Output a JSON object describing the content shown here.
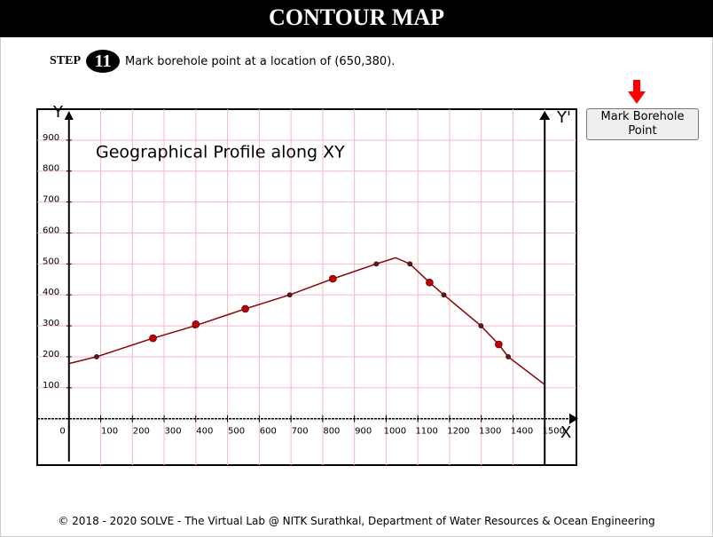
{
  "header": {
    "title": "CONTOUR MAP"
  },
  "step": {
    "label": "STEP",
    "number": "11",
    "instruction": "Mark borehole point at a location of (650,380)."
  },
  "button": {
    "label": "Mark Borehole Point"
  },
  "chart_data": {
    "type": "line",
    "title": "Geographical Profile along XY",
    "x_axis_label": "X",
    "y_axis_label": "Y",
    "y2_axis_label": "Y'",
    "xlim": [
      -100,
      1600
    ],
    "ylim": [
      -150,
      1000
    ],
    "xticks": [
      0,
      100,
      200,
      300,
      400,
      500,
      600,
      700,
      800,
      900,
      1000,
      1100,
      1200,
      1300,
      1400,
      1500
    ],
    "yticks": [
      100,
      200,
      300,
      400,
      500,
      600,
      700,
      800,
      900
    ],
    "grid": true,
    "grid_color": "#f4b8c8",
    "series": [
      {
        "color": "#8b0000",
        "x": [
          0,
          87,
          265,
          397,
          556,
          696,
          832,
          969,
          1030,
          1075,
          1137,
          1182,
          1299,
          1355,
          1385,
          1500
        ],
        "values": [
          178,
          200,
          260,
          300,
          355,
          400,
          452,
          500,
          520,
          500,
          440,
          400,
          300,
          240,
          200,
          110
        ]
      },
      {
        "type": "scatter",
        "color": "#5a1a1a",
        "x": [
          87,
          397,
          696,
          969,
          1075,
          1182,
          1299,
          1385
        ],
        "values": [
          200,
          300,
          400,
          500,
          500,
          400,
          300,
          200
        ]
      },
      {
        "type": "scatter",
        "color": "#c00000",
        "x": [
          265,
          400,
          556,
          832,
          1137,
          1355
        ],
        "values": [
          260,
          305,
          355,
          452,
          440,
          240
        ]
      }
    ]
  },
  "footer": {
    "text": "© 2018 - 2020 SOLVE - The Virtual Lab @ NITK Surathkal, Department of Water Resources & Ocean Engineering"
  }
}
